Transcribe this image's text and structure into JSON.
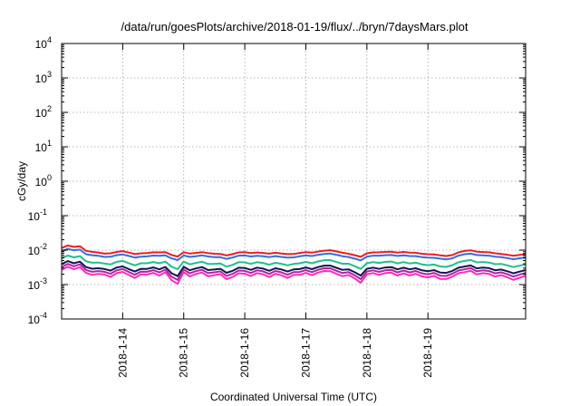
{
  "chart_data": {
    "type": "line",
    "title": "/data/run/goesPlots/archive/2018-01-19/flux/../bryn/7daysMars.plot",
    "xlabel": "Coordinated Universal Time (UTC)",
    "ylabel": "cGy/day",
    "yscale": "log",
    "ylim": [
      0.0001,
      10000
    ],
    "xlim": [
      0,
      7.6
    ],
    "yticks": [
      {
        "value": 10000,
        "base": "10",
        "exp": "4"
      },
      {
        "value": 1000,
        "base": "10",
        "exp": "3"
      },
      {
        "value": 100,
        "base": "10",
        "exp": "2"
      },
      {
        "value": 10,
        "base": "10",
        "exp": "1"
      },
      {
        "value": 1,
        "base": "10",
        "exp": "0"
      },
      {
        "value": 0.1,
        "base": "10",
        "exp": "-1"
      },
      {
        "value": 0.01,
        "base": "10",
        "exp": "-2"
      },
      {
        "value": 0.001,
        "base": "10",
        "exp": "-3"
      },
      {
        "value": 0.0001,
        "base": "10",
        "exp": "-4"
      }
    ],
    "xticks": [
      {
        "value": 1,
        "label": "2018-1-14"
      },
      {
        "value": 2,
        "label": "2018-1-15"
      },
      {
        "value": 3,
        "label": "2018-1-16"
      },
      {
        "value": 4,
        "label": "2018-1-17"
      },
      {
        "value": 5,
        "label": "2018-1-18"
      },
      {
        "value": 6,
        "label": "2018-1-19"
      }
    ],
    "grid": true,
    "legend": "none",
    "x": [
      0.0,
      0.1,
      0.2,
      0.3,
      0.4,
      0.5,
      0.6,
      0.7,
      0.8,
      0.9,
      1.0,
      1.1,
      1.2,
      1.3,
      1.4,
      1.5,
      1.6,
      1.7,
      1.8,
      1.9,
      2.0,
      2.1,
      2.2,
      2.3,
      2.4,
      2.5,
      2.6,
      2.7,
      2.8,
      2.9,
      3.0,
      3.1,
      3.2,
      3.3,
      3.4,
      3.5,
      3.6,
      3.7,
      3.8,
      3.9,
      4.0,
      4.1,
      4.2,
      4.3,
      4.4,
      4.5,
      4.6,
      4.7,
      4.8,
      4.9,
      5.0,
      5.1,
      5.2,
      5.3,
      5.4,
      5.5,
      5.6,
      5.7,
      5.8,
      5.9,
      6.0,
      6.1,
      6.2,
      6.3,
      6.4,
      6.5,
      6.6,
      6.7,
      6.8,
      6.9,
      7.0,
      7.1,
      7.2,
      7.3,
      7.4,
      7.5,
      7.6
    ],
    "base": [
      0.0115,
      0.0135,
      0.0125,
      0.0128,
      0.0095,
      0.009,
      0.0085,
      0.0078,
      0.0082,
      0.0088,
      0.0092,
      0.0085,
      0.0078,
      0.008,
      0.0082,
      0.0085,
      0.0087,
      0.0086,
      0.0075,
      0.0068,
      0.0085,
      0.008,
      0.0082,
      0.0086,
      0.0083,
      0.0078,
      0.0076,
      0.0071,
      0.0077,
      0.0085,
      0.0087,
      0.0083,
      0.0084,
      0.0082,
      0.008,
      0.0083,
      0.0079,
      0.0078,
      0.0076,
      0.0083,
      0.0086,
      0.0085,
      0.009,
      0.0095,
      0.0098,
      0.0092,
      0.0085,
      0.0078,
      0.0072,
      0.0066,
      0.008,
      0.0085,
      0.0087,
      0.0088,
      0.0089,
      0.0086,
      0.0088,
      0.0085,
      0.0083,
      0.0079,
      0.0077,
      0.0074,
      0.0072,
      0.0068,
      0.0072,
      0.0085,
      0.0094,
      0.0097,
      0.0091,
      0.0087,
      0.0086,
      0.0082,
      0.0077,
      0.0074,
      0.007,
      0.0073,
      0.0076
    ],
    "noise": [
      0.0,
      0.04,
      -0.02,
      0.06,
      0.0,
      -0.05,
      0.03,
      0.06,
      -0.08,
      0.04,
      0.07,
      -0.02,
      -0.09,
      0.05,
      0.02,
      0.08,
      -0.06,
      0.1,
      -0.15,
      -0.22,
      0.12,
      -0.04,
      0.05,
      0.09,
      -0.06,
      0.03,
      0.1,
      -0.08,
      -0.04,
      0.06,
      0.02,
      -0.05,
      0.08,
      0.04,
      -0.07,
      0.05,
      0.02,
      -0.09,
      0.06,
      0.0,
      0.07,
      -0.03,
      0.05,
      0.09,
      0.06,
      -0.02,
      -0.07,
      0.04,
      -0.06,
      -0.17,
      0.05,
      0.07,
      -0.03,
      0.04,
      0.06,
      -0.05,
      0.03,
      -0.04,
      0.05,
      -0.03,
      -0.06,
      0.04,
      -0.08,
      -0.05,
      0.02,
      0.06,
      0.04,
      0.08,
      -0.04,
      0.05,
      0.02,
      -0.06,
      0.04,
      -0.03,
      -0.1,
      -0.04,
      0.02
    ],
    "series": [
      {
        "color": "#ed1c24",
        "factor": 1.0,
        "amp": 0.2
      },
      {
        "color": "#2f6fe0",
        "factor": 0.8,
        "amp": 0.25
      },
      {
        "color": "#1fbf8f",
        "factor": 0.5,
        "amp": 0.8
      },
      {
        "color": "#141450",
        "factor": 0.34,
        "amp": 1.1
      },
      {
        "color": "#b0249e",
        "factor": 0.28,
        "amp": 1.3
      },
      {
        "color": "#ff2ac0",
        "factor": 0.23,
        "amp": 1.5
      }
    ]
  }
}
